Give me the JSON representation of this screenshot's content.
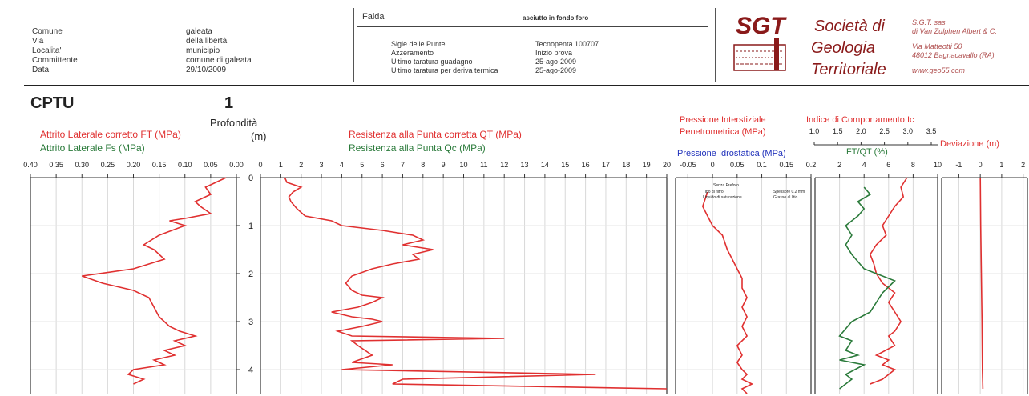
{
  "header": {
    "left_labels": [
      "Comune",
      "Via",
      "Localita'",
      "Committente",
      "Data"
    ],
    "left_values": [
      "galeata",
      "della libertà",
      "municipio",
      "comune di galeata",
      "29/10/2009"
    ],
    "falda_label": "Falda",
    "falda_value": "asciutto in fondo foro",
    "probe_labels": [
      "Sigle delle Punte",
      "Azzeramento",
      "Ultimo taratura guadagno",
      "Ultimo taratura per deriva termica"
    ],
    "probe_values": [
      "Tecnopenta 100707",
      "Inizio prova",
      "25-ago-2009",
      "25-ago-2009"
    ],
    "logo_text": "SGT",
    "company_lines": [
      "Società di",
      "Geologia",
      "Territoriale"
    ],
    "company_info": [
      "S.G.T. sas",
      "di Van Zulphen Albert & C.",
      "Via Matteotti 50",
      "48012  Bagnacavallo (RA)",
      "www.geo55.com"
    ]
  },
  "test": {
    "title": "CPTU",
    "number": "1",
    "depth_title": "Profondità",
    "depth_unit": "(m)"
  },
  "colors": {
    "red": "#e03030",
    "green": "#2a7a3a",
    "blue": "#2233bb",
    "maroon": "#8a1a1a"
  },
  "chart_data": [
    {
      "type": "line",
      "title": "",
      "series": [
        {
          "name": "Attrito Laterale corretto FT (MPa)",
          "color": "#e03030",
          "x": [
            0.02,
            0.04,
            0.06,
            0.05,
            0.08,
            0.07,
            0.05,
            0.1,
            0.13,
            0.1,
            0.15,
            0.18,
            0.16,
            0.14,
            0.2,
            0.3,
            0.26,
            0.2,
            0.17,
            0.16,
            0.15,
            0.14,
            0.13,
            0.11,
            0.08,
            0.12,
            0.1,
            0.14,
            0.12,
            0.16,
            0.14,
            0.2,
            0.21,
            0.18,
            0.2
          ],
          "y": [
            0.0,
            0.1,
            0.2,
            0.35,
            0.5,
            0.6,
            0.75,
            0.85,
            0.9,
            1.0,
            1.2,
            1.4,
            1.5,
            1.7,
            1.9,
            2.05,
            2.2,
            2.35,
            2.5,
            2.7,
            2.9,
            3.0,
            3.1,
            3.2,
            3.3,
            3.4,
            3.5,
            3.6,
            3.7,
            3.8,
            3.9,
            4.0,
            4.1,
            4.2,
            4.3
          ]
        }
      ],
      "x_ticks": [
        "0.40",
        "0.35",
        "0.30",
        "0.25",
        "0.20",
        "0.15",
        "0.10",
        "0.05",
        "0.00"
      ],
      "xlim": [
        0.4,
        0.0
      ],
      "ylim": [
        0,
        4.5
      ]
    },
    {
      "type": "line",
      "title": "",
      "series": [
        {
          "name": "Resistenza alla Punta corretta QT (MPa)",
          "color": "#e03030",
          "x": [
            1.2,
            1.3,
            2.0,
            1.6,
            1.4,
            1.5,
            1.8,
            2.2,
            3.5,
            4.0,
            6.0,
            7.5,
            8.0,
            7.0,
            8.5,
            7.5,
            7.8,
            6.5,
            5.5,
            4.5,
            4.2,
            4.5,
            5.0,
            6.0,
            5.5,
            4.8,
            3.5,
            4.5,
            5.5,
            6.0,
            5.0,
            3.8,
            4.5,
            12.0,
            4.5,
            4.8,
            5.5,
            4.5,
            6.5,
            4.0,
            16.5,
            7.0,
            6.5,
            20.0
          ],
          "y": [
            0.0,
            0.1,
            0.2,
            0.3,
            0.4,
            0.5,
            0.65,
            0.8,
            0.9,
            1.0,
            1.1,
            1.2,
            1.3,
            1.4,
            1.5,
            1.6,
            1.7,
            1.8,
            1.9,
            2.05,
            2.2,
            2.35,
            2.45,
            2.5,
            2.6,
            2.7,
            2.8,
            2.9,
            2.95,
            3.0,
            3.1,
            3.2,
            3.3,
            3.35,
            3.4,
            3.5,
            3.7,
            3.85,
            3.9,
            4.0,
            4.1,
            4.2,
            4.3,
            4.4
          ]
        }
      ],
      "x_ticks": [
        "0",
        "1",
        "2",
        "3",
        "4",
        "5",
        "6",
        "7",
        "8",
        "9",
        "10",
        "11",
        "12",
        "13",
        "14",
        "15",
        "16",
        "17",
        "18",
        "19",
        "20"
      ],
      "xlim": [
        0,
        20
      ],
      "ylim": [
        0,
        4.5
      ]
    },
    {
      "type": "line",
      "title": "",
      "series": [
        {
          "name": "Pressione Interstiziale Penetrometrica (MPa)",
          "color": "#e03030",
          "x": [
            -0.01,
            -0.02,
            -0.01,
            0.0,
            0.02,
            0.03,
            0.04,
            0.05,
            0.06,
            0.06,
            0.07,
            0.06,
            0.07,
            0.06,
            0.07,
            0.05,
            0.06,
            0.05,
            0.06,
            0.07,
            0.06,
            0.08,
            0.06,
            0.07
          ],
          "y": [
            0.3,
            0.6,
            0.8,
            1.0,
            1.2,
            1.5,
            1.7,
            1.9,
            2.1,
            2.3,
            2.5,
            2.7,
            2.9,
            3.1,
            3.3,
            3.5,
            3.7,
            3.85,
            4.0,
            4.1,
            4.2,
            4.3,
            4.4,
            4.5
          ]
        }
      ],
      "x_ticks": [
        "-0.05",
        "0",
        "0.05",
        "0.1",
        "0.15",
        "0.2"
      ],
      "xlim": [
        -0.075,
        0.2
      ],
      "ylim": [
        0,
        4.5
      ],
      "legend_items": [
        "Senza Preforo",
        "Tipo di filtro",
        "Liquido di saturazione",
        "Spessore 0.2 mm",
        "Grasso al litio"
      ]
    },
    {
      "type": "line",
      "title": "",
      "series": [
        {
          "name": "Indice di Comportamento Ic",
          "color": "#e03030",
          "x": [
            7.5,
            7.0,
            7.2,
            6.5,
            6.0,
            5.5,
            5.8,
            5.0,
            4.5,
            4.8,
            5.0,
            5.5,
            6.5,
            6.0,
            6.5,
            7.0,
            6.5,
            6.0,
            6.5,
            5.0,
            6.0,
            5.5,
            6.5,
            5.5,
            4.5
          ],
          "y": [
            0.0,
            0.2,
            0.4,
            0.6,
            0.8,
            1.0,
            1.2,
            1.4,
            1.6,
            1.8,
            2.0,
            2.2,
            2.4,
            2.6,
            2.8,
            3.0,
            3.2,
            3.3,
            3.5,
            3.7,
            3.8,
            3.9,
            4.0,
            4.2,
            4.3
          ]
        },
        {
          "name": "FT/QT (%)",
          "color": "#2a7a3a",
          "x": [
            4.0,
            4.5,
            3.5,
            4.0,
            3.5,
            2.5,
            3.0,
            2.5,
            3.0,
            3.5,
            4.0,
            5.0,
            6.5,
            5.5,
            5.0,
            4.5,
            3.0,
            2.0,
            3.0,
            2.5,
            3.5,
            2.0,
            4.0,
            2.5,
            3.0,
            2.0
          ],
          "y": [
            0.2,
            0.35,
            0.5,
            0.65,
            0.8,
            1.0,
            1.2,
            1.4,
            1.6,
            1.75,
            1.9,
            2.0,
            2.15,
            2.4,
            2.6,
            2.8,
            3.0,
            3.3,
            3.4,
            3.6,
            3.7,
            3.8,
            3.9,
            4.1,
            4.2,
            4.4
          ]
        }
      ],
      "x_ticks": [
        "2",
        "4",
        "6",
        "8",
        "10"
      ],
      "xlim": [
        0,
        10
      ],
      "ic_ticks": [
        "1.0",
        "1.5",
        "2.0",
        "2.5",
        "3.0",
        "3.5"
      ],
      "ylim": [
        0,
        4.5
      ]
    },
    {
      "type": "line",
      "title": "",
      "series": [
        {
          "name": "Deviazione (m)",
          "color": "#e03030",
          "x": [
            0.0,
            0.02,
            0.05,
            0.08,
            0.1,
            0.12
          ],
          "y": [
            0.0,
            1.0,
            2.0,
            3.0,
            4.0,
            4.4
          ]
        }
      ],
      "x_ticks": [
        "-1",
        "0",
        "1",
        "2"
      ],
      "xlim": [
        -1.8,
        2.2
      ],
      "ylim": [
        0,
        4.5
      ]
    }
  ],
  "series_labels": {
    "ft": "Attrito Laterale corretto FT (MPa)",
    "fs": "Attrito Laterale Fs (MPa)",
    "qt": "Resistenza alla Punta corretta QT (MPa)",
    "qc": "Resistenza alla Punta Qc (MPa)",
    "u": "Pressione Interstiziale",
    "u2": "Penetrometrica (MPa)",
    "u0": "Pressione Idrostatica (MPa)",
    "ic": "Indice di Comportamento Ic",
    "ftqt": "FT/QT (%)",
    "dev": "Deviazione (m)"
  },
  "depth_ticks": [
    "0",
    "1",
    "2",
    "3",
    "4"
  ]
}
